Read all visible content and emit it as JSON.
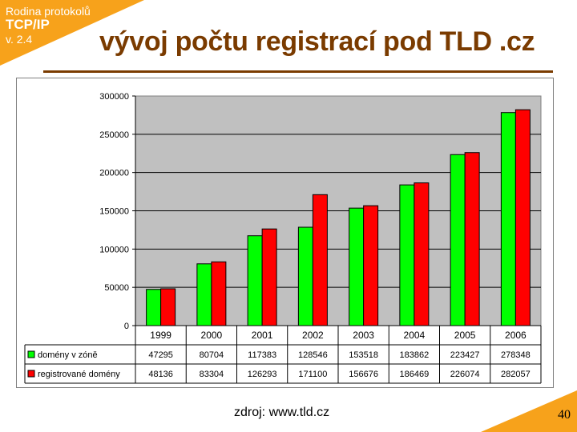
{
  "header": {
    "series_name": "Rodina protokolů",
    "protocol": "TCP/IP",
    "version": "v. 2.4",
    "title": "vývoj počtu registrací pod TLD .cz"
  },
  "footer": {
    "source": "zdroj: www.tld.cz",
    "page_number": "40"
  },
  "colors": {
    "accent": "#f7a21b",
    "title": "#7a3b00",
    "plot_background": "#c0c0c0"
  },
  "chart_data": {
    "type": "bar",
    "categories": [
      "1999",
      "2000",
      "2001",
      "2002",
      "2003",
      "2004",
      "2005",
      "2006"
    ],
    "series": [
      {
        "name": "domény v zóně",
        "color": "#00ff00",
        "values": [
          47295,
          80704,
          117383,
          128546,
          153518,
          183862,
          223427,
          278348
        ]
      },
      {
        "name": "registrované domény",
        "color": "#ff0000",
        "values": [
          48136,
          83304,
          126293,
          171100,
          156676,
          186469,
          226074,
          282057
        ]
      }
    ],
    "ylim": [
      0,
      300000
    ],
    "yticks": [
      "300000",
      "250000",
      "200000",
      "150000",
      "100000",
      "50000",
      "0"
    ],
    "grid": true,
    "legend": "data-table"
  }
}
